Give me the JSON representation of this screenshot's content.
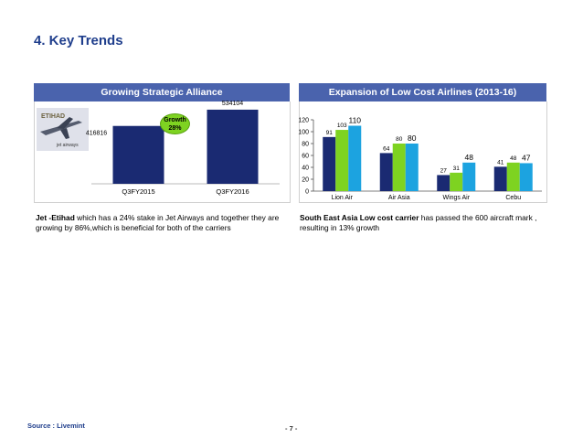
{
  "slide": {
    "title": "4. Key Trends",
    "source": "Source : Livemint",
    "page_number": "- 7 -"
  },
  "left_panel": {
    "header": "Growing Strategic Alliance",
    "badge_line1": "Growth",
    "badge_line2": "28%",
    "logo_text": "ETIHAD",
    "logo_subtext": "jet airways",
    "desc_bold": "Jet -Etihad",
    "desc_rest": " which has a 24% stake in Jet Airways and together they are growing by 86%,which is beneficial for both of the carriers"
  },
  "right_panel": {
    "header": "Expansion of Low Cost Airlines  (2013-16)",
    "desc_bold": "South East Asia Low cost carrier",
    "desc_rest": " has passed the 600 aircraft mark , resulting in 13% growth"
  },
  "colors": {
    "accent_title": "#1f3e8c",
    "header_bg": "#4a63ad",
    "navy": "#1a2a72",
    "green": "#7ed321",
    "blue": "#1ca3e0"
  },
  "chart_data": [
    {
      "type": "bar",
      "categories": [
        "Q3FY2015",
        "Q3FY2016"
      ],
      "values": [
        416816,
        534104
      ],
      "data_labels": [
        "416816",
        "534104"
      ],
      "title": "",
      "xlabel": "",
      "ylabel": "",
      "ylim": [
        0,
        560000
      ],
      "grid": false
    },
    {
      "type": "bar",
      "categories": [
        "Lion Air",
        "Air Asia",
        "Wings Air",
        "Cebu"
      ],
      "series": [
        {
          "values": [
            91,
            64,
            27,
            41
          ],
          "color": "#1a2a72"
        },
        {
          "values": [
            103,
            80,
            31,
            48
          ],
          "color": "#7ed321"
        },
        {
          "values": [
            110,
            80,
            48,
            47
          ],
          "color": "#1ca3e0"
        }
      ],
      "yticks": [
        "0",
        "20",
        "40",
        "60",
        "80",
        "100",
        "120"
      ],
      "ylim": [
        0,
        120
      ],
      "title": "",
      "xlabel": "",
      "ylabel": "",
      "grid": false
    }
  ]
}
